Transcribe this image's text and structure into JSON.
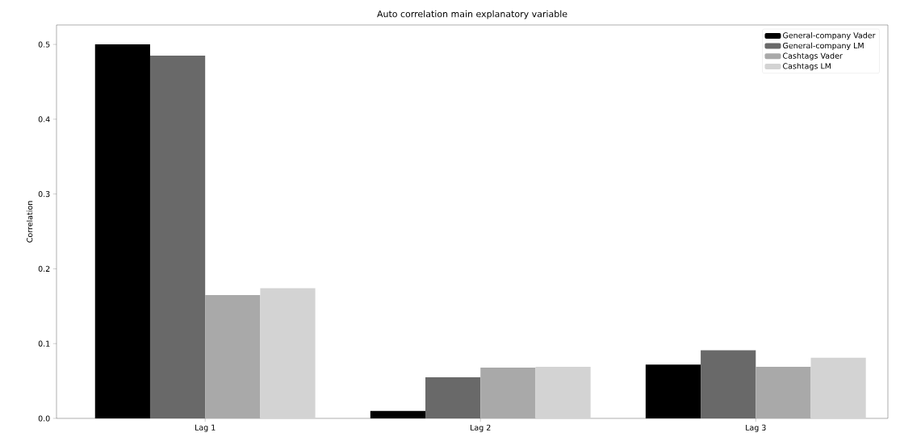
{
  "chart_data": {
    "type": "bar",
    "title": "Auto correlation main explanatory variable",
    "ylabel": "Correlation",
    "categories": [
      "Lag 1",
      "Lag 2",
      "Lag 3"
    ],
    "series": [
      {
        "name": "General-company Vader",
        "color": "#000000",
        "values": [
          0.5,
          0.01,
          0.072
        ]
      },
      {
        "name": "General-company LM",
        "color": "#696969",
        "values": [
          0.485,
          0.055,
          0.091
        ]
      },
      {
        "name": "Cashtags Vader",
        "color": "#a9a9a9",
        "values": [
          0.165,
          0.068,
          0.069
        ]
      },
      {
        "name": "Cashtags LM",
        "color": "#d3d3d3",
        "values": [
          0.174,
          0.069,
          0.081
        ]
      }
    ],
    "ylim": [
      0,
      0.526
    ],
    "yticks": [
      {
        "value": 0,
        "label": "0.0"
      },
      0.1,
      0.2,
      0.3,
      0.4,
      0.5
    ],
    "legend": "top right",
    "grid": false
  }
}
